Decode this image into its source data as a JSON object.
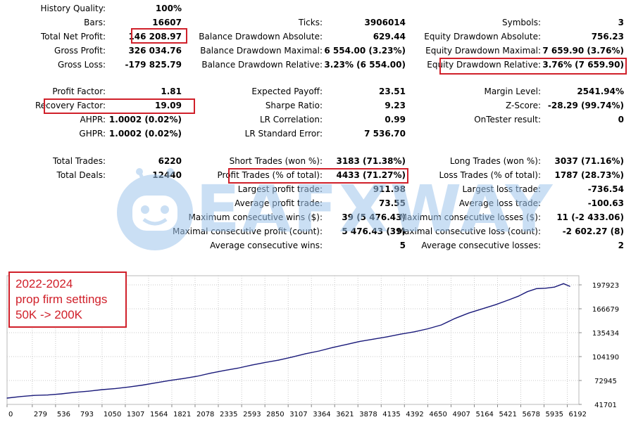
{
  "rows": [
    {
      "label": "History Quality:",
      "value": "100%"
    },
    {
      "label": "Bars:",
      "value": "16607"
    },
    {
      "label": "Ticks:",
      "value": "3906014"
    },
    {
      "label": "Symbols:",
      "value": "3"
    },
    {
      "label": "Total Net Profit:",
      "value": "146 208.97"
    },
    {
      "label": "Balance Drawdown Absolute:",
      "value": "629.44"
    },
    {
      "label": "Equity Drawdown Absolute:",
      "value": "756.23"
    },
    {
      "label": "Gross Profit:",
      "value": "326 034.76"
    },
    {
      "label": "Balance Drawdown Maximal:",
      "value": "6 554.00 (3.23%)"
    },
    {
      "label": "Equity Drawdown Maximal:",
      "value": "7 659.90 (3.76%)"
    },
    {
      "label": "Gross Loss:",
      "value": "-179 825.79"
    },
    {
      "label": "Balance Drawdown Relative:",
      "value": "3.23% (6 554.00)"
    },
    {
      "label": "Equity Drawdown Relative:",
      "value": "3.76% (7 659.90)"
    },
    {
      "label": "Profit Factor:",
      "value": "1.81"
    },
    {
      "label": "Expected Payoff:",
      "value": "23.51"
    },
    {
      "label": "Margin Level:",
      "value": "2541.94%"
    },
    {
      "label": "Recovery Factor:",
      "value": "19.09"
    },
    {
      "label": "Sharpe Ratio:",
      "value": "9.23"
    },
    {
      "label": "Z-Score:",
      "value": "-28.29 (99.74%)"
    },
    {
      "label": "AHPR:",
      "value": "1.0002 (0.02%)"
    },
    {
      "label": "LR Correlation:",
      "value": "0.99"
    },
    {
      "label": "OnTester result:",
      "value": "0"
    },
    {
      "label": "GHPR:",
      "value": "1.0002 (0.02%)"
    },
    {
      "label": "LR Standard Error:",
      "value": "7 536.70"
    },
    {
      "label": "Total Trades:",
      "value": "6220"
    },
    {
      "label": "Short Trades (won %):",
      "value": "3183 (71.38%)"
    },
    {
      "label": "Long Trades (won %):",
      "value": "3037 (71.16%)"
    },
    {
      "label": "Total Deals:",
      "value": "12440"
    },
    {
      "label": "Profit Trades (% of total):",
      "value": "4433 (71.27%)"
    },
    {
      "label": "Loss Trades (% of total):",
      "value": "1787 (28.73%)"
    },
    {
      "label": "Largest profit trade:",
      "value": "911.98"
    },
    {
      "label": "Largest loss trade:",
      "value": "-736.54"
    },
    {
      "label": "Average profit trade:",
      "value": "73.55"
    },
    {
      "label": "Average loss trade:",
      "value": "-100.63"
    },
    {
      "label": "Maximum consecutive wins ($):",
      "value": "39 (5 476.43)"
    },
    {
      "label": "Maximum consecutive losses ($):",
      "value": "11 (-2 433.06)"
    },
    {
      "label": "Maximal consecutive profit (count):",
      "value": "5 476.43 (39)"
    },
    {
      "label": "Maximal consecutive loss (count):",
      "value": "-2 602.27 (8)"
    },
    {
      "label": "Average consecutive wins:",
      "value": "5"
    },
    {
      "label": "Average consecutive losses:",
      "value": "2"
    }
  ],
  "watermark": {
    "text": "EAFXWAY"
  },
  "annotation": {
    "line1": "2022-2024",
    "line2": "prop firm settings",
    "line3": "50K -> 200K"
  },
  "colors": {
    "highlight": "#d0202a",
    "line": "#1a1a7a",
    "watermark": "#9fc5ec"
  },
  "chart_data": {
    "type": "line",
    "title": "",
    "xlabel": "",
    "ylabel": "",
    "xlim": [
      0,
      6320
    ],
    "ylim": [
      41701,
      210000
    ],
    "x_ticks": [
      0,
      279,
      536,
      793,
      1050,
      1307,
      1564,
      1821,
      2078,
      2335,
      2593,
      2850,
      3107,
      3364,
      3621,
      3878,
      4135,
      4392,
      4650,
      4907,
      5164,
      5421,
      5678,
      5935,
      6192
    ],
    "y_ticks": [
      41701,
      72945,
      104190,
      135434,
      166679,
      197923
    ],
    "grid": true,
    "series": [
      {
        "x": [
          0,
          150,
          300,
          450,
          600,
          750,
          900,
          1050,
          1200,
          1350,
          1500,
          1650,
          1800,
          1950,
          2100,
          2250,
          2400,
          2550,
          2700,
          2850,
          3000,
          3150,
          3300,
          3450,
          3600,
          3750,
          3900,
          4050,
          4200,
          4350,
          4500,
          4650,
          4800,
          4950,
          5100,
          5250,
          5400,
          5550,
          5650,
          5750,
          5850,
          5950,
          6050,
          6150,
          6220
        ],
        "y": [
          50000,
          52000,
          53500,
          54000,
          55500,
          57500,
          59000,
          61000,
          62500,
          64500,
          67000,
          70000,
          73000,
          75500,
          78500,
          82500,
          86000,
          89000,
          93000,
          96500,
          99500,
          103500,
          108000,
          111500,
          116000,
          120000,
          124000,
          127000,
          130000,
          133500,
          136500,
          140500,
          145500,
          154000,
          161000,
          166500,
          172000,
          178500,
          183000,
          189000,
          193000,
          193500,
          195000,
          199500,
          196000
        ]
      }
    ]
  }
}
